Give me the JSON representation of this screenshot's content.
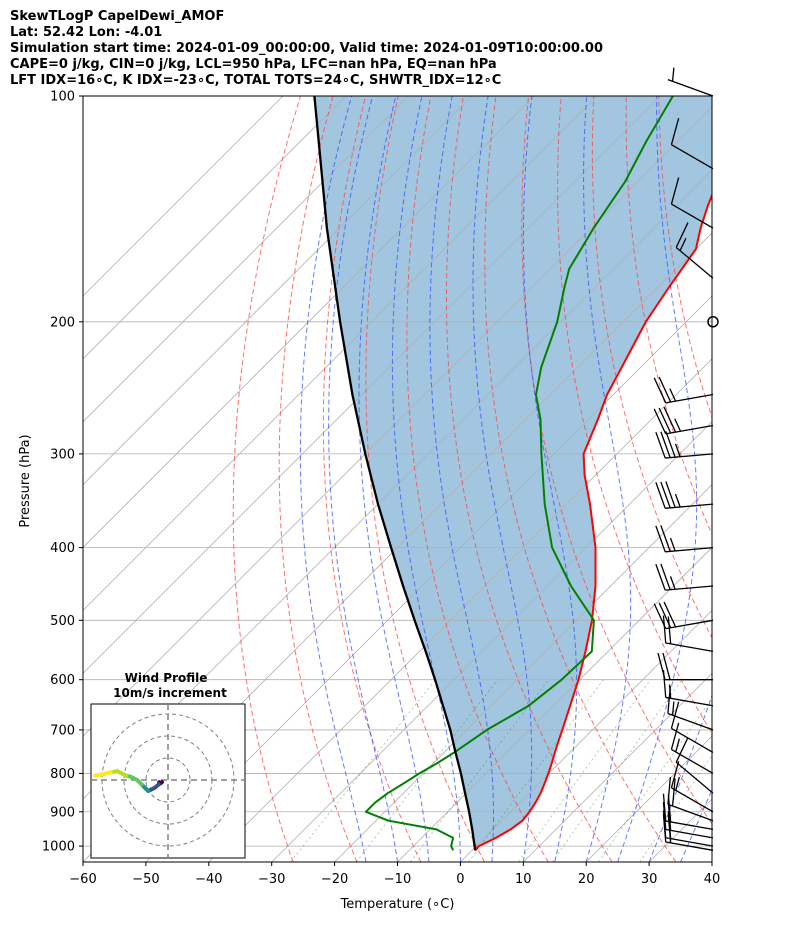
{
  "header": {
    "line1": "SkewTLogP CapelDewi_AMOF",
    "line2": "Lat: 52.42   Lon: -4.01",
    "line3": "Simulation start time: 2024-01-09_00:00:00, Valid time: 2024-01-09T10:00:00.00",
    "line4": "CAPE=0 j/kg, CIN=0 j/kg, LCL=950 hPa, LFC=nan hPa, EQ=nan hPa",
    "line5": "LFT IDX=16∘C, K IDX=-23∘C, TOTAL TOTS=24∘C, SHWTR_IDX=12∘C"
  },
  "chart_data": {
    "type": "line",
    "xlabel": "Temperature (∘C)",
    "ylabel": "Pressure (hPa)",
    "xlim": [
      -60,
      40
    ],
    "ylim": [
      1050,
      100
    ],
    "y_scale": "log",
    "x_ticks": [
      -60,
      -50,
      -40,
      -30,
      -20,
      -10,
      0,
      10,
      20,
      30,
      40
    ],
    "x_tick_labels": [
      "−60",
      "−50",
      "−40",
      "−30",
      "−20",
      "−10",
      "0",
      "10",
      "20",
      "30",
      "40"
    ],
    "y_ticks": [
      100,
      200,
      300,
      400,
      500,
      600,
      700,
      800,
      900,
      1000
    ],
    "y_tick_labels": [
      "100",
      "200",
      "300",
      "400",
      "500",
      "600",
      "700",
      "800",
      "900",
      "1000"
    ],
    "grid": true,
    "skew_deg": 45,
    "dry_adiabats_theta_c": [
      -30,
      -20,
      -10,
      0,
      10,
      20,
      30,
      40,
      50,
      60,
      70,
      80
    ],
    "moist_adiabats_start_c": [
      -15,
      -10,
      -5,
      0,
      5,
      10,
      15,
      20,
      25,
      30,
      35
    ],
    "mixing_ratio_lines_gkg": [
      0.4,
      1,
      2,
      4,
      7,
      10,
      16,
      24
    ],
    "series": [
      {
        "name": "temperature",
        "color": "#ff0000",
        "p": [
          1013,
          1000,
          975,
          950,
          925,
          900,
          875,
          850,
          825,
          800,
          775,
          750,
          725,
          700,
          650,
          600,
          550,
          500,
          450,
          400,
          350,
          320,
          300,
          270,
          250,
          230,
          200,
          180,
          160,
          150,
          140,
          125,
          115,
          105,
          100
        ],
        "t": [
          0.5,
          0.4,
          1.8,
          2.8,
          3.3,
          3.0,
          2.5,
          1.8,
          0.9,
          -0.1,
          -1.2,
          -2.4,
          -3.6,
          -4.8,
          -7.4,
          -10.2,
          -13.6,
          -17.5,
          -22.4,
          -28.5,
          -36.3,
          -41.8,
          -45.3,
          -48.5,
          -51.0,
          -53.0,
          -56.4,
          -58.2,
          -60.0,
          -62.6,
          -65.0,
          -68.5,
          -71.0,
          -73.9,
          -75.5
        ]
      },
      {
        "name": "dewpoint",
        "color": "#008000",
        "p": [
          1013,
          1000,
          975,
          950,
          925,
          900,
          875,
          850,
          825,
          800,
          775,
          750,
          700,
          650,
          600,
          550,
          500,
          450,
          400,
          350,
          300,
          270,
          250,
          230,
          200,
          180,
          170,
          150,
          130,
          115,
          100
        ],
        "t": [
          -3.0,
          -4.0,
          -5.0,
          -9.0,
          -18.0,
          -23.0,
          -23.0,
          -22.5,
          -21.5,
          -20.6,
          -19.4,
          -18.4,
          -16.8,
          -14.0,
          -12.9,
          -12.6,
          -17.2,
          -26.3,
          -35.4,
          -43.5,
          -52.0,
          -57.6,
          -62.3,
          -65.8,
          -70.5,
          -74.8,
          -77.0,
          -79.6,
          -82.0,
          -85.0,
          -88.0
        ]
      },
      {
        "name": "parcel",
        "color": "#000000",
        "p": [
          1013,
          950,
          900,
          850,
          800,
          750,
          700,
          650,
          600,
          550,
          500,
          450,
          400,
          350,
          300,
          250,
          200,
          150,
          100
        ],
        "t": [
          0.5,
          -3.3,
          -6.6,
          -10.2,
          -14.0,
          -18.2,
          -22.6,
          -27.6,
          -33.0,
          -39.0,
          -45.7,
          -53.0,
          -61.0,
          -70.0,
          -80.0,
          -91.5,
          -105.0,
          -122.0,
          -145.0
        ]
      }
    ],
    "cin_shading": {
      "between": [
        "temperature",
        "parcel"
      ],
      "color": "#a2c6e0"
    },
    "wind_barbs": {
      "p": [
        100,
        125,
        150,
        175,
        200,
        250,
        275,
        300,
        350,
        400,
        450,
        500,
        550,
        600,
        650,
        700,
        750,
        800,
        850,
        900,
        925,
        950,
        975,
        1000,
        1013
      ],
      "speed_kt": [
        5,
        10,
        10,
        15,
        null,
        25,
        35,
        35,
        35,
        25,
        25,
        30,
        20,
        20,
        15,
        15,
        10,
        15,
        10,
        15,
        20,
        20,
        20,
        20,
        20
      ],
      "direction_deg": [
        290,
        300,
        300,
        310,
        null,
        260,
        260,
        265,
        265,
        265,
        265,
        260,
        280,
        270,
        280,
        290,
        300,
        300,
        310,
        300,
        290,
        280,
        280,
        280,
        280
      ],
      "calm_at_p": 200
    },
    "hodograph": {
      "title_line1": "Wind Profile",
      "title_line2": "10m/s increment",
      "ring_spacing_ms": 10,
      "rings": 3,
      "colormap": [
        "#440154",
        "#3b528b",
        "#21918c",
        "#5ec962",
        "#b5de2b",
        "#fde725"
      ],
      "u_ms": [
        -4.0,
        -3.5,
        -2.8,
        -4.2,
        -6.0,
        -8.0,
        -9.0,
        -10.0,
        -12.0,
        -14.0,
        -17.0,
        -19.0,
        -21.0,
        -23.0,
        -26.0,
        -30.0,
        -33.0
      ],
      "v_ms": [
        -1.0,
        -1.5,
        -1.0,
        -2.0,
        -3.5,
        -4.5,
        -5.0,
        -4.0,
        -2.0,
        0.0,
        1.5,
        2.0,
        3.0,
        4.0,
        3.5,
        2.5,
        2.0
      ]
    }
  }
}
